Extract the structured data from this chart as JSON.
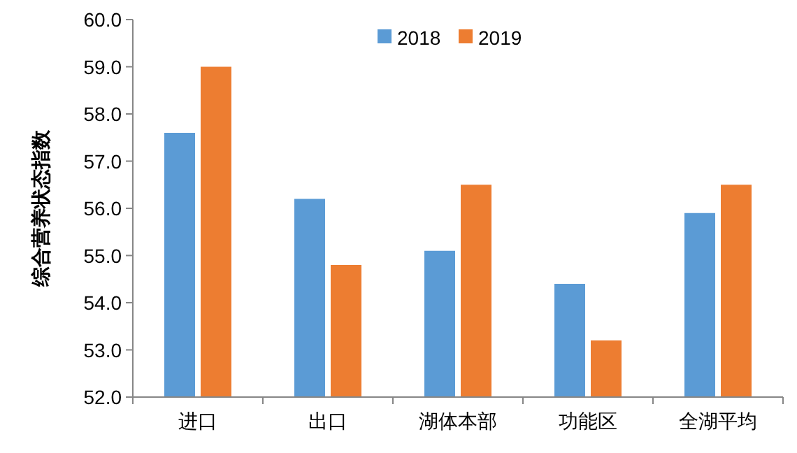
{
  "chart_data": {
    "type": "bar",
    "ylabel": "综合营养状态指数",
    "categories": [
      "进口",
      "出口",
      "湖体本部",
      "功能区",
      "全湖平均"
    ],
    "series": [
      {
        "name": "2018",
        "color": "#5b9bd5",
        "values": [
          57.6,
          56.2,
          55.1,
          54.4,
          55.9
        ]
      },
      {
        "name": "2019",
        "color": "#ed7d31",
        "values": [
          59.0,
          54.8,
          56.5,
          53.2,
          56.5
        ]
      }
    ],
    "ylim": [
      52,
      60
    ],
    "yticks": [
      {
        "value": 52,
        "label": "52.0"
      },
      {
        "value": 53,
        "label": "53.0"
      },
      {
        "value": 54,
        "label": "54.0"
      },
      {
        "value": 55,
        "label": "55.0"
      },
      {
        "value": 56,
        "label": "56.0"
      },
      {
        "value": 57,
        "label": "57.0"
      },
      {
        "value": 58,
        "label": "58.0"
      },
      {
        "value": 59,
        "label": "59.0"
      },
      {
        "value": 60,
        "label": "60.0"
      }
    ],
    "grid": false,
    "legend": "top"
  }
}
